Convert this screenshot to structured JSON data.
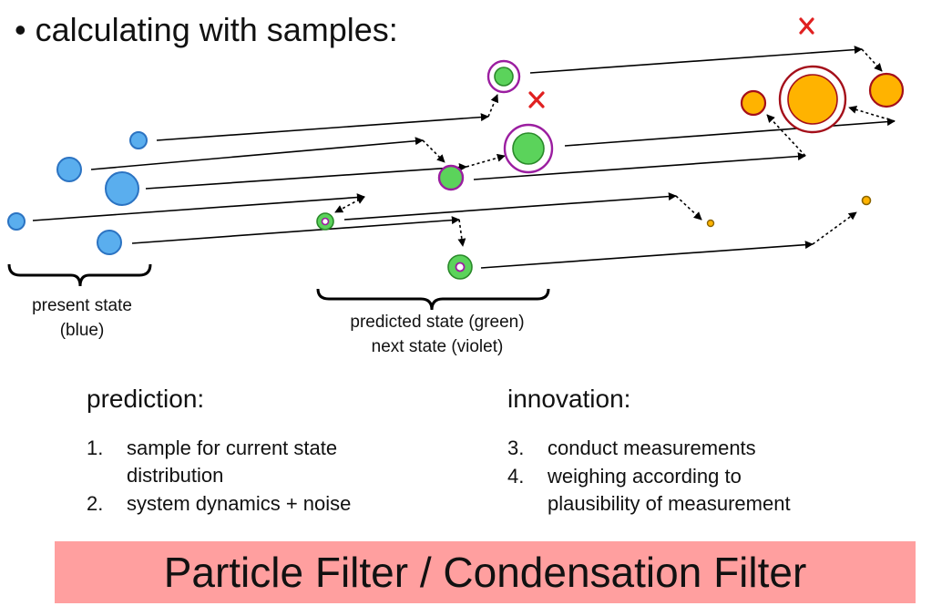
{
  "title": "calculating with samples:",
  "captions": {
    "present": [
      "present state",
      "(blue)"
    ],
    "predicted": [
      "predicted state (green)",
      "next state (violet)"
    ]
  },
  "prediction": {
    "heading": "prediction:",
    "steps": [
      {
        "num": "1.",
        "lines": [
          "sample for current state",
          "distribution"
        ]
      },
      {
        "num": "2.",
        "lines": [
          "system dynamics + noise"
        ]
      }
    ]
  },
  "innovation": {
    "heading": "innovation:",
    "steps": [
      {
        "num": "3.",
        "lines": [
          "conduct measurements"
        ]
      },
      {
        "num": "4.",
        "lines": [
          "weighing according to",
          "plausibility of measurement"
        ]
      }
    ]
  },
  "banner": "Particle Filter / Condensation Filter",
  "colors": {
    "present": "#5aaeee",
    "present_stroke": "#2b73c2",
    "predicted": "#5bd35b",
    "predicted_stroke": "#2a8a2a",
    "next": "#9b1ea0",
    "weighted": "#ffb300",
    "weighted_stroke": "#a40f1a",
    "reject": "#e02020",
    "banner_bg": "#ff9f9f"
  }
}
